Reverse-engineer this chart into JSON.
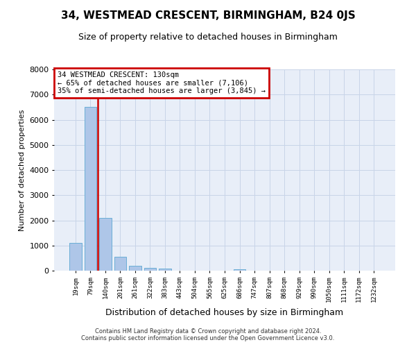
{
  "title": "34, WESTMEAD CRESCENT, BIRMINGHAM, B24 0JS",
  "subtitle": "Size of property relative to detached houses in Birmingham",
  "xlabel": "Distribution of detached houses by size in Birmingham",
  "ylabel": "Number of detached properties",
  "footnote1": "Contains HM Land Registry data © Crown copyright and database right 2024.",
  "footnote2": "Contains public sector information licensed under the Open Government Licence v3.0.",
  "bar_labels": [
    "19sqm",
    "79sqm",
    "140sqm",
    "201sqm",
    "261sqm",
    "322sqm",
    "383sqm",
    "443sqm",
    "504sqm",
    "565sqm",
    "625sqm",
    "686sqm",
    "747sqm",
    "807sqm",
    "868sqm",
    "929sqm",
    "990sqm",
    "1050sqm",
    "1111sqm",
    "1172sqm",
    "1232sqm"
  ],
  "bar_values": [
    1100,
    6500,
    2100,
    550,
    200,
    120,
    70,
    0,
    0,
    0,
    0,
    60,
    0,
    0,
    0,
    0,
    0,
    0,
    0,
    0,
    0
  ],
  "bar_color": "#aec6e8",
  "bar_edge_color": "#6baed6",
  "vline_pos": 1.5,
  "vline_color": "#cc0000",
  "annotation_text": "34 WESTMEAD CRESCENT: 130sqm\n← 65% of detached houses are smaller (7,106)\n35% of semi-detached houses are larger (3,845) →",
  "annotation_box_edgecolor": "#cc0000",
  "ylim": [
    0,
    8000
  ],
  "yticks": [
    0,
    1000,
    2000,
    3000,
    4000,
    5000,
    6000,
    7000,
    8000
  ],
  "grid_color": "#c8d4e8",
  "background_color": "#e8eef8",
  "title_fontsize": 11,
  "subtitle_fontsize": 9,
  "ylabel_fontsize": 8,
  "xlabel_fontsize": 9,
  "tick_fontsize": 8,
  "xtick_fontsize": 6.5,
  "footnote_fontsize": 6,
  "annotation_fontsize": 7.5
}
